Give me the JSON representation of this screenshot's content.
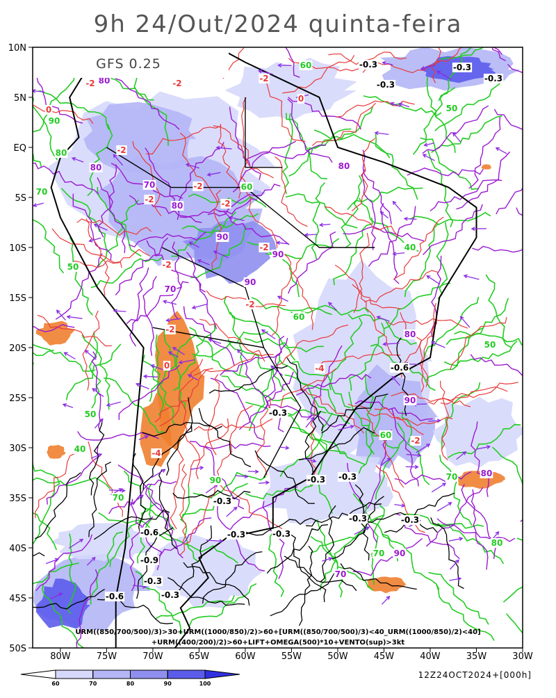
{
  "title": "9h 24/Out/2024 quinta-feira",
  "model": "GFS 0.25",
  "map": {
    "lat_labels": [
      "10N",
      "5N",
      "EQ",
      "5S",
      "10S",
      "15S",
      "20S",
      "25S",
      "30S",
      "35S",
      "40S",
      "45S",
      "50S"
    ],
    "lon_labels": [
      "80W",
      "75W",
      "70W",
      "65W",
      "60W",
      "55W",
      "50W",
      "45W",
      "40W",
      "35W",
      "30W"
    ],
    "omega_labels": [
      "-0.3",
      "-0.3",
      "-0.3",
      "-0.3",
      "-0.6",
      "-0.3",
      "-0.3",
      "-0.3",
      "-0.6",
      "-0.9",
      "-0.3",
      "-0.6",
      "-0.3",
      "-0.3",
      "-0.3",
      "-0.3",
      "-0.3",
      "-0.3"
    ],
    "rh_labels": [
      "-2",
      "-2",
      "-2",
      "0",
      "-2",
      "-2",
      "-2",
      "-2",
      "-4",
      "-2",
      "0",
      "-2",
      "-4",
      "-2",
      "-2",
      "-2",
      "0"
    ],
    "green_labels": [
      "60",
      "90",
      "80",
      "70",
      "50",
      "60",
      "40",
      "50",
      "70",
      "60",
      "50",
      "40",
      "90",
      "70",
      "60",
      "50",
      "80",
      "70"
    ],
    "purple_labels": [
      "80",
      "70",
      "80",
      "90",
      "80",
      "90",
      "90",
      "70",
      "80",
      "90",
      "80",
      "90",
      "70",
      "80"
    ]
  },
  "footer": {
    "line1": "URM((850/700/500)/3)>30+URM((1000/850)/2)>60+[URM((850/700/500)/3)<40_URM((1000/850)/2)<40]",
    "line2": "+URM((400/200)/2)>60+LIFT+OMEGA(500)*10+VENTO(sup)>3kt"
  },
  "colorbar": {
    "ticks": [
      60,
      70,
      80,
      90,
      100
    ],
    "colors": [
      "#ffffff",
      "#d6d8fc",
      "#b4b6f6",
      "#8f8ff0",
      "#5c5ceb",
      "#3030e0"
    ]
  },
  "timestamp": "12Z24OCT2024+[000h]"
}
